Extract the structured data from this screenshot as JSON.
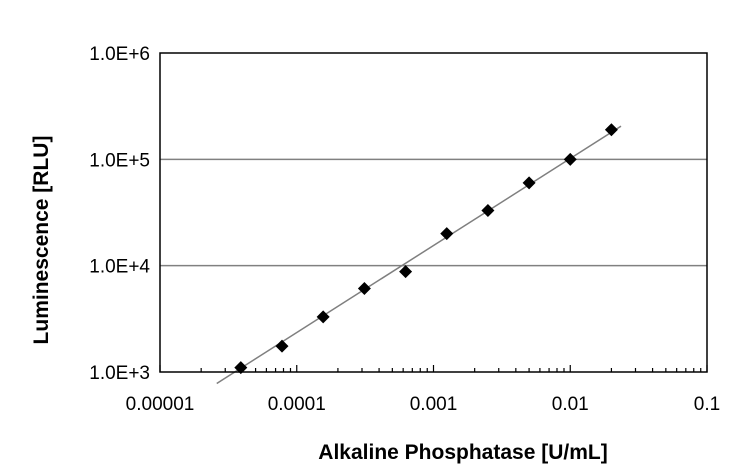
{
  "chart_data": {
    "type": "scatter",
    "title": "",
    "xlabel": "Alkaline Phosphatase [U/mL]",
    "ylabel": "Luminescence [RLU]",
    "xscale": "log",
    "yscale": "log",
    "xlim": [
      1e-05,
      0.1
    ],
    "ylim": [
      1000,
      1000000
    ],
    "x_tick_values": [
      1e-05,
      0.0001,
      0.001,
      0.01,
      0.1
    ],
    "x_tick_labels": [
      "0.00001",
      "0.0001",
      "0.001",
      "0.01",
      "0.1"
    ],
    "y_tick_values": [
      1000,
      10000,
      100000,
      1000000
    ],
    "y_tick_labels": [
      "1.0E+3",
      "1.0E+4",
      "1.0E+5",
      "1.0E+6"
    ],
    "grid": "horizontal major gridlines",
    "legend": "none",
    "marker": "diamond",
    "colors": {
      "marker": "#000000",
      "trendline": "#7f7f7f",
      "grid": "#808080",
      "frame": "#000000"
    },
    "series": [
      {
        "points": [
          {
            "x": 3.9e-05,
            "y": 1100
          },
          {
            "x": 7.8e-05,
            "y": 1750
          },
          {
            "x": 0.000156,
            "y": 3300
          },
          {
            "x": 0.0003125,
            "y": 6100
          },
          {
            "x": 0.000625,
            "y": 8800
          },
          {
            "x": 0.00125,
            "y": 20000
          },
          {
            "x": 0.0025,
            "y": 33000
          },
          {
            "x": 0.005,
            "y": 60000
          },
          {
            "x": 0.01,
            "y": 100000
          },
          {
            "x": 0.02,
            "y": 190000
          }
        ]
      }
    ],
    "trendline": {
      "type": "power",
      "points": [
        {
          "x": 2.6e-05,
          "y": 780
        },
        {
          "x": 0.0235,
          "y": 205000
        }
      ]
    }
  }
}
